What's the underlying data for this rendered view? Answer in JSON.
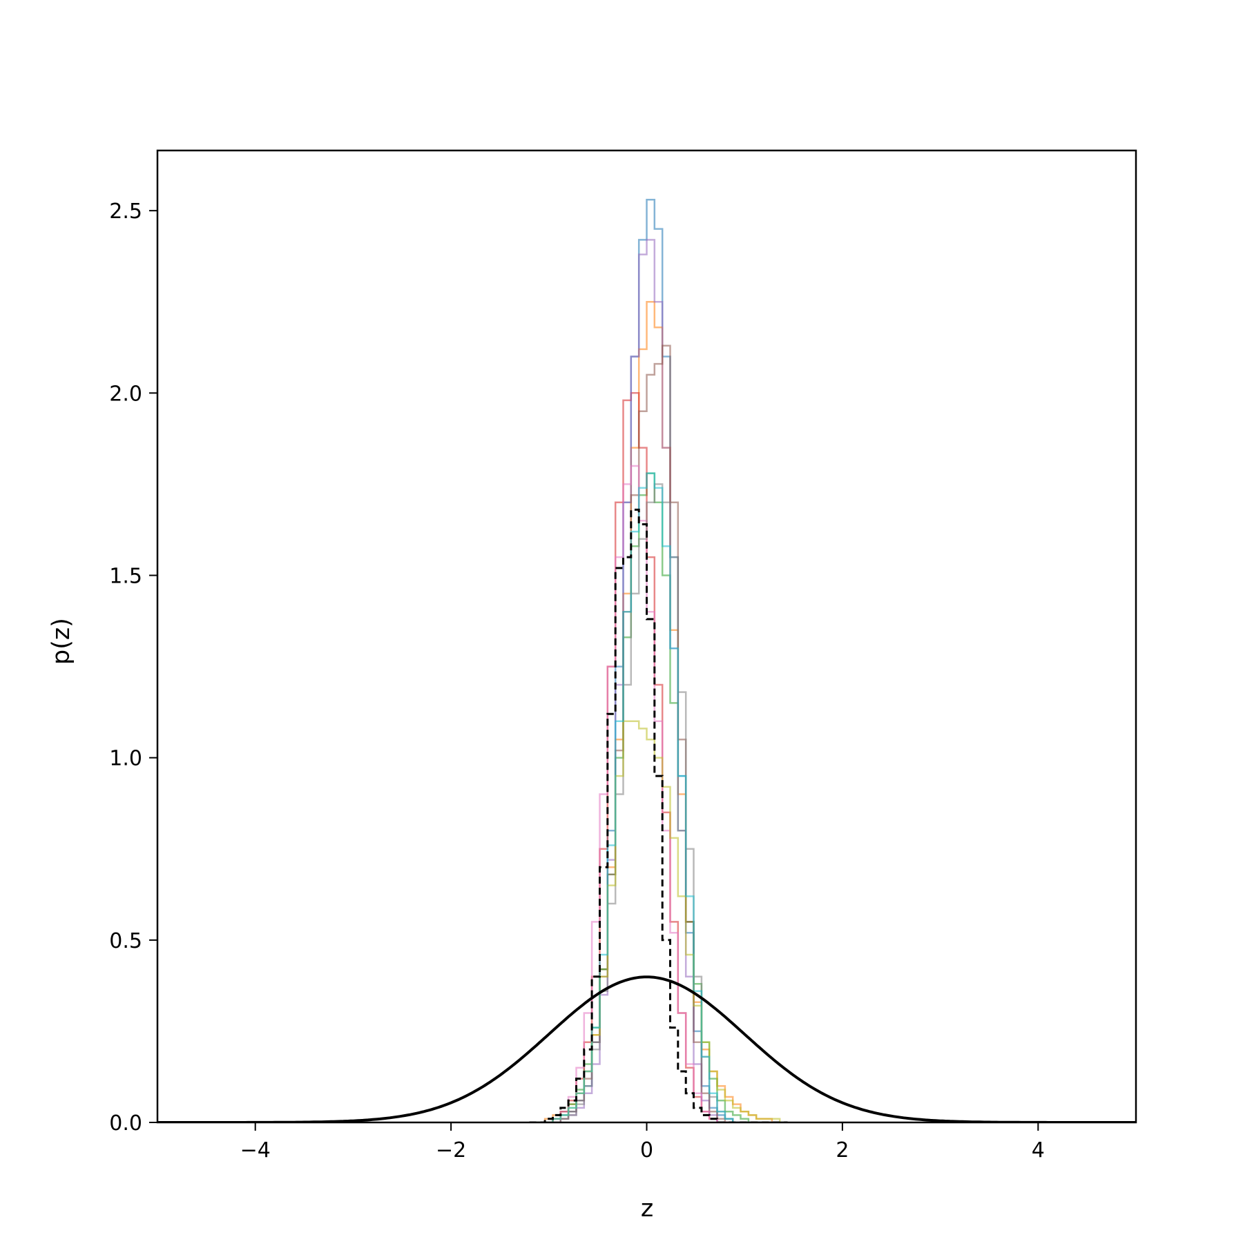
{
  "chart_data": {
    "type": "histogram",
    "title": "",
    "xlabel": "z",
    "ylabel": "p(z)",
    "xlim": [
      -5,
      5
    ],
    "ylim": [
      0,
      2.665
    ],
    "xticks": [
      -4,
      -2,
      0,
      2,
      4
    ],
    "xtick_labels": [
      "−4",
      "−2",
      "0",
      "2",
      "4"
    ],
    "yticks": [
      0.0,
      0.5,
      1.0,
      1.5,
      2.0,
      2.5
    ],
    "ytick_labels": [
      "0.0",
      "0.5",
      "1.0",
      "1.5",
      "2.0",
      "2.5"
    ],
    "grid": false,
    "legend": "none",
    "bin_edges": [
      -1.2,
      -1.12,
      -1.04,
      -0.96,
      -0.88,
      -0.8,
      -0.72,
      -0.64,
      -0.56,
      -0.48,
      -0.4,
      -0.32,
      -0.24,
      -0.16,
      -0.08,
      0.0,
      0.08,
      0.16,
      0.24,
      0.32,
      0.4,
      0.48,
      0.56,
      0.64,
      0.72,
      0.8,
      0.88,
      0.96,
      1.04,
      1.12,
      1.2,
      1.28,
      1.36,
      1.44
    ],
    "histograms": [
      {
        "color": "#1f77b4",
        "densities": [
          0,
          0,
          0,
          0.01,
          0.02,
          0.03,
          0.06,
          0.1,
          0.22,
          0.42,
          0.8,
          1.25,
          1.7,
          2.1,
          2.42,
          2.53,
          2.45,
          2.1,
          1.55,
          0.95,
          0.52,
          0.25,
          0.1,
          0.04,
          0.02,
          0.01,
          0,
          0,
          0,
          0,
          0,
          0,
          0
        ]
      },
      {
        "color": "#ff7f0e",
        "densities": [
          0,
          0,
          0.01,
          0.02,
          0.03,
          0.05,
          0.08,
          0.14,
          0.24,
          0.42,
          0.7,
          1.05,
          1.45,
          1.85,
          2.12,
          2.25,
          2.18,
          1.85,
          1.35,
          0.9,
          0.55,
          0.33,
          0.2,
          0.14,
          0.1,
          0.07,
          0.05,
          0.03,
          0.02,
          0.01,
          0.01,
          0,
          0
        ]
      },
      {
        "color": "#2ca02c",
        "densities": [
          0,
          0,
          0,
          0.01,
          0.03,
          0.05,
          0.09,
          0.16,
          0.26,
          0.42,
          0.68,
          1.0,
          1.33,
          1.58,
          1.72,
          1.78,
          1.7,
          1.5,
          1.15,
          0.8,
          0.55,
          0.38,
          0.22,
          0.12,
          0.06,
          0.03,
          0.02,
          0.01,
          0,
          0,
          0,
          0,
          0
        ]
      },
      {
        "color": "#d62728",
        "densities": [
          0,
          0,
          0,
          0.01,
          0.03,
          0.06,
          0.12,
          0.22,
          0.4,
          0.75,
          1.25,
          1.7,
          1.98,
          2.0,
          1.85,
          1.55,
          1.2,
          0.85,
          0.55,
          0.3,
          0.15,
          0.07,
          0.03,
          0.01,
          0,
          0,
          0,
          0,
          0,
          0,
          0,
          0,
          0
        ]
      },
      {
        "color": "#9467bd",
        "densities": [
          0,
          0,
          0,
          0,
          0.01,
          0.02,
          0.04,
          0.08,
          0.16,
          0.35,
          0.72,
          1.2,
          1.7,
          2.1,
          2.38,
          2.42,
          2.25,
          1.85,
          1.3,
          0.8,
          0.4,
          0.16,
          0.06,
          0.02,
          0,
          0,
          0,
          0,
          0,
          0,
          0,
          0,
          0
        ]
      },
      {
        "color": "#8c564b",
        "densities": [
          0,
          0,
          0,
          0,
          0.01,
          0.03,
          0.06,
          0.12,
          0.22,
          0.4,
          0.68,
          1.02,
          1.4,
          1.72,
          1.95,
          2.05,
          2.08,
          2.13,
          1.7,
          1.05,
          0.55,
          0.22,
          0.08,
          0.03,
          0.01,
          0,
          0,
          0,
          0,
          0,
          0,
          0,
          0
        ]
      },
      {
        "color": "#e377c2",
        "densities": [
          0,
          0,
          0,
          0.01,
          0.03,
          0.07,
          0.15,
          0.3,
          0.55,
          0.9,
          1.25,
          1.55,
          1.75,
          1.8,
          1.65,
          1.4,
          1.1,
          0.8,
          0.52,
          0.3,
          0.16,
          0.08,
          0.03,
          0.01,
          0,
          0,
          0,
          0,
          0,
          0,
          0,
          0,
          0
        ]
      },
      {
        "color": "#7f7f7f",
        "densities": [
          0,
          0,
          0,
          0,
          0.01,
          0.02,
          0.05,
          0.1,
          0.2,
          0.36,
          0.6,
          0.9,
          1.2,
          1.45,
          1.6,
          1.7,
          1.75,
          1.7,
          1.55,
          1.18,
          0.75,
          0.4,
          0.18,
          0.07,
          0.03,
          0.01,
          0,
          0,
          0,
          0,
          0,
          0,
          0
        ]
      },
      {
        "color": "#bcbd22",
        "densities": [
          0,
          0,
          0,
          0.01,
          0.02,
          0.04,
          0.08,
          0.14,
          0.24,
          0.4,
          0.65,
          0.95,
          1.1,
          1.1,
          1.08,
          1.05,
          1.0,
          0.92,
          0.78,
          0.62,
          0.46,
          0.32,
          0.22,
          0.14,
          0.09,
          0.06,
          0.04,
          0.03,
          0.02,
          0.01,
          0.01,
          0.01,
          0
        ]
      },
      {
        "color": "#17becf",
        "densities": [
          0,
          0,
          0,
          0.01,
          0.02,
          0.04,
          0.08,
          0.14,
          0.26,
          0.46,
          0.76,
          1.1,
          1.4,
          1.62,
          1.74,
          1.78,
          1.74,
          1.58,
          1.3,
          0.95,
          0.62,
          0.36,
          0.18,
          0.08,
          0.03,
          0.01,
          0,
          0,
          0,
          0,
          0,
          0,
          0
        ]
      }
    ],
    "mean_histogram": {
      "color": "#000000",
      "linestyle": "dashed",
      "densities": [
        0,
        0,
        0.01,
        0.02,
        0.04,
        0.06,
        0.12,
        0.2,
        0.4,
        0.7,
        1.12,
        1.52,
        1.55,
        1.68,
        1.64,
        1.38,
        0.95,
        0.5,
        0.26,
        0.14,
        0.08,
        0.04,
        0.02,
        0.01,
        0,
        0,
        0,
        0,
        0,
        0,
        0,
        0,
        0
      ]
    },
    "reference_curve": {
      "type": "standard-normal-pdf",
      "mu": 0,
      "sigma": 1,
      "color": "#000000"
    }
  }
}
